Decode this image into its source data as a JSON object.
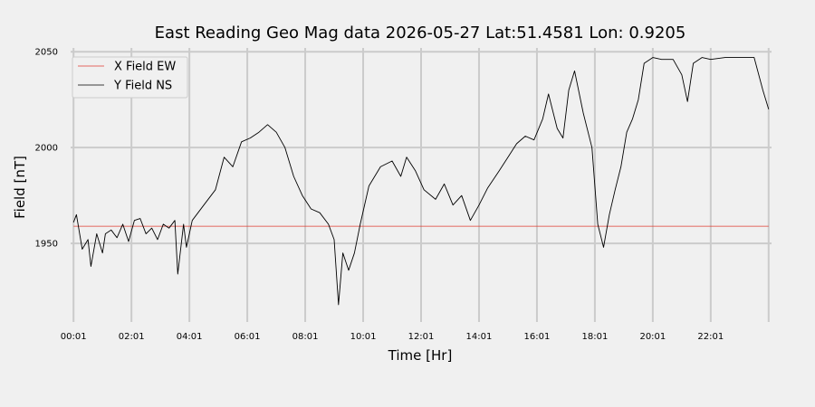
{
  "chart_data": {
    "type": "line",
    "title": "East Reading Geo Mag data        2026-05-27      Lat:51.4581  Lon: 0.9205",
    "xlabel": "Time  [Hr]",
    "ylabel": "Field  [nT]",
    "x_unit": "hours",
    "xlim": [
      -0.1,
      24.1
    ],
    "ylim": [
      1909,
      2052
    ],
    "x_ticks": [
      {
        "value": 0.0,
        "label": "00:01"
      },
      {
        "value": 2.0,
        "label": "02:01"
      },
      {
        "value": 4.0,
        "label": "04:01"
      },
      {
        "value": 6.0,
        "label": "06:01"
      },
      {
        "value": 8.0,
        "label": "08:01"
      },
      {
        "value": 10.0,
        "label": "10:01"
      },
      {
        "value": 12.0,
        "label": "12:01"
      },
      {
        "value": 14.0,
        "label": "14:01"
      },
      {
        "value": 16.0,
        "label": "16:01"
      },
      {
        "value": 18.0,
        "label": "18:01"
      },
      {
        "value": 20.0,
        "label": "20:01"
      },
      {
        "value": 22.0,
        "label": "22:01"
      },
      {
        "value": 24.0,
        "label": ""
      }
    ],
    "y_ticks": [
      {
        "value": 1950,
        "label": "1950"
      },
      {
        "value": 2000,
        "label": "2000"
      },
      {
        "value": 2050,
        "label": "2050"
      }
    ],
    "grid": true,
    "legend_position": "top-left",
    "series": [
      {
        "name": "X Field EW",
        "color": "#e03c31",
        "x": [
          0.0,
          24.0
        ],
        "y": [
          1959,
          1959
        ]
      },
      {
        "name": "Y Field NS",
        "color": "#000000",
        "x": [
          0.0,
          0.1,
          0.3,
          0.5,
          0.6,
          0.8,
          1.0,
          1.1,
          1.3,
          1.5,
          1.7,
          1.9,
          2.1,
          2.3,
          2.5,
          2.7,
          2.9,
          3.1,
          3.3,
          3.5,
          3.6,
          3.8,
          3.9,
          4.1,
          4.5,
          4.9,
          5.2,
          5.5,
          5.8,
          6.1,
          6.4,
          6.7,
          7.0,
          7.3,
          7.6,
          7.9,
          8.2,
          8.5,
          8.8,
          9.0,
          9.15,
          9.3,
          9.5,
          9.7,
          9.9,
          10.2,
          10.6,
          11.0,
          11.3,
          11.5,
          11.8,
          12.1,
          12.5,
          12.8,
          13.1,
          13.4,
          13.7,
          14.0,
          14.3,
          14.7,
          15.0,
          15.3,
          15.6,
          15.9,
          16.2,
          16.4,
          16.7,
          16.9,
          17.1,
          17.3,
          17.6,
          17.9,
          18.1,
          18.3,
          18.5,
          18.7,
          18.9,
          19.1,
          19.3,
          19.5,
          19.7,
          20.0,
          20.3,
          20.7,
          21.0,
          21.2,
          21.4,
          21.7,
          22.0,
          22.5,
          23.0,
          23.5,
          23.8,
          24.0
        ],
        "y": [
          1961,
          1965,
          1947,
          1952,
          1938,
          1955,
          1945,
          1955,
          1957,
          1953,
          1960,
          1951,
          1962,
          1963,
          1955,
          1958,
          1952,
          1960,
          1958,
          1962,
          1934,
          1960,
          1948,
          1962,
          1970,
          1978,
          1995,
          1990,
          2003,
          2005,
          2008,
          2012,
          2008,
          2000,
          1985,
          1975,
          1968,
          1966,
          1960,
          1952,
          1918,
          1945,
          1936,
          1945,
          1960,
          1980,
          1990,
          1993,
          1985,
          1995,
          1988,
          1978,
          1973,
          1981,
          1970,
          1975,
          1962,
          1970,
          1979,
          1988,
          1995,
          2002,
          2006,
          2004,
          2015,
          2028,
          2010,
          2005,
          2030,
          2040,
          2018,
          2000,
          1960,
          1948,
          1965,
          1978,
          1990,
          2008,
          2015,
          2025,
          2044,
          2047,
          2046,
          2046,
          2038,
          2024,
          2044,
          2047,
          2046,
          2047,
          2047,
          2047,
          2030,
          2020
        ]
      }
    ]
  }
}
